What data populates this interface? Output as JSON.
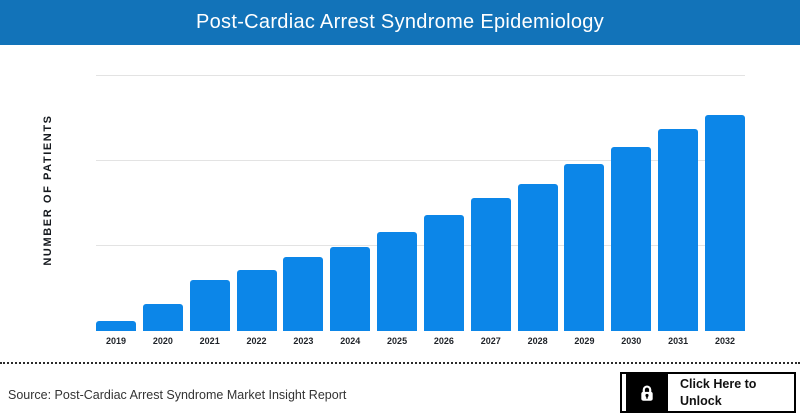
{
  "header": {
    "title": "Post-Cardiac Arrest Syndrome Epidemiology",
    "background_color": "#1273b9",
    "text_color": "#ffffff"
  },
  "chart_data": {
    "type": "bar",
    "title": "Post-Cardiac Arrest Syndrome Epidemiology",
    "xlabel": "",
    "ylabel": "NUMBER OF PATIENTS",
    "categories": [
      "2019",
      "2020",
      "2021",
      "2022",
      "2023",
      "2024",
      "2025",
      "2026",
      "2027",
      "2028",
      "2029",
      "2030",
      "2031",
      "2032"
    ],
    "values": [
      10,
      27,
      51,
      61,
      74,
      84,
      99,
      116,
      133,
      147,
      167,
      184,
      202,
      216
    ],
    "values_unit": "relative units (no numeric y-axis tick labels shown)",
    "ylim": [
      0,
      256
    ],
    "bar_color": "#0c86e8",
    "grid": "3 horizontal light-gray gridlines, no y tick labels",
    "legend": "none"
  },
  "footer": {
    "source_text": "Source: Post-Cardiac Arrest Syndrome Market Insight Report",
    "unlock_button": {
      "line1": "Click Here to",
      "line2": "Unlock",
      "icon": "lock-icon"
    }
  }
}
